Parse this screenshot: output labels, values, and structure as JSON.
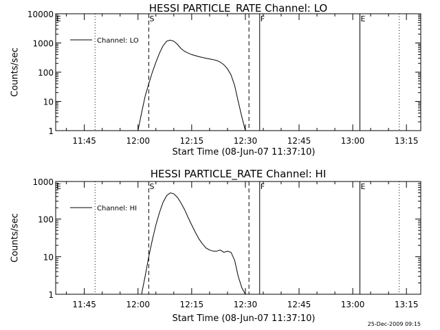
{
  "chart_data": [
    {
      "type": "line",
      "title": "HESSI PARTICLE_RATE Channel: LO",
      "xlabel": "Start Time (08-Jun-07 11:37:10)",
      "ylabel": "Counts/sec",
      "y_scale": "log",
      "xlim": [
        "11:37",
        "13:19"
      ],
      "ylim": [
        1,
        10000
      ],
      "x_ticks": [
        "11:45",
        "12:00",
        "12:15",
        "12:30",
        "12:45",
        "13:00",
        "13:15"
      ],
      "y_ticks": [
        "1",
        "10",
        "100",
        "1000",
        "10000"
      ],
      "legend": {
        "placement": "top-left",
        "entries": [
          "Channel: LO"
        ]
      },
      "markers": [
        {
          "time": "11:37",
          "label": "E",
          "style": "dotted"
        },
        {
          "time": "11:48",
          "label": "",
          "style": "dotted"
        },
        {
          "time": "12:03",
          "label": "S",
          "style": "dashed"
        },
        {
          "time": "12:31",
          "label": "",
          "style": "dashed"
        },
        {
          "time": "12:34",
          "label": "F",
          "style": "solid"
        },
        {
          "time": "13:02",
          "label": "E",
          "style": "solid"
        },
        {
          "time": "13:13",
          "label": "",
          "style": "dotted"
        }
      ],
      "series": [
        {
          "name": "Channel: LO",
          "x": [
            "12:00",
            "12:01",
            "12:02",
            "12:03",
            "12:04",
            "12:05",
            "12:06",
            "12:07",
            "12:08",
            "12:09",
            "12:10",
            "12:11",
            "12:12",
            "12:13",
            "12:14",
            "12:15",
            "12:16",
            "12:17",
            "12:18",
            "12:19",
            "12:20",
            "12:21",
            "12:22",
            "12:23",
            "12:24",
            "12:25",
            "12:26",
            "12:27",
            "12:28",
            "12:29",
            "12:30"
          ],
          "values": [
            1,
            4,
            15,
            40,
            100,
            220,
            450,
            800,
            1150,
            1250,
            1150,
            900,
            650,
            520,
            450,
            400,
            370,
            340,
            320,
            300,
            285,
            270,
            250,
            220,
            180,
            130,
            80,
            35,
            10,
            3,
            1
          ]
        }
      ]
    },
    {
      "type": "line",
      "title": "HESSI PARTICLE_RATE Channel: HI",
      "xlabel": "Start Time (08-Jun-07 11:37:10)",
      "ylabel": "Counts/sec",
      "y_scale": "log",
      "xlim": [
        "11:37",
        "13:19"
      ],
      "ylim": [
        1,
        1000
      ],
      "x_ticks": [
        "11:45",
        "12:00",
        "12:15",
        "12:30",
        "12:45",
        "13:00",
        "13:15"
      ],
      "y_ticks": [
        "1",
        "10",
        "100",
        "1000"
      ],
      "legend": {
        "placement": "top-left",
        "entries": [
          "Channel: HI"
        ]
      },
      "markers": [
        {
          "time": "11:37",
          "label": "E",
          "style": "dotted"
        },
        {
          "time": "11:48",
          "label": "",
          "style": "dotted"
        },
        {
          "time": "12:03",
          "label": "S",
          "style": "dashed"
        },
        {
          "time": "12:31",
          "label": "",
          "style": "dashed"
        },
        {
          "time": "12:34",
          "label": "F",
          "style": "solid"
        },
        {
          "time": "13:02",
          "label": "E",
          "style": "solid"
        },
        {
          "time": "13:13",
          "label": "",
          "style": "dotted"
        }
      ],
      "series": [
        {
          "name": "Channel: HI",
          "x": [
            "12:01",
            "12:02",
            "12:03",
            "12:04",
            "12:05",
            "12:06",
            "12:07",
            "12:08",
            "12:09",
            "12:10",
            "12:11",
            "12:12",
            "12:13",
            "12:14",
            "12:15",
            "12:16",
            "12:17",
            "12:18",
            "12:19",
            "12:20",
            "12:21",
            "12:22",
            "12:23",
            "12:24",
            "12:25",
            "12:26",
            "12:27",
            "12:28",
            "12:29",
            "12:30"
          ],
          "values": [
            1,
            3,
            10,
            28,
            70,
            150,
            280,
            420,
            500,
            470,
            380,
            270,
            180,
            110,
            70,
            45,
            30,
            22,
            17,
            15,
            14,
            14,
            15,
            13,
            14,
            13,
            8,
            3,
            1.5,
            1
          ]
        }
      ]
    }
  ],
  "footer": {
    "timestamp": "25-Dec-2009 09:15"
  }
}
